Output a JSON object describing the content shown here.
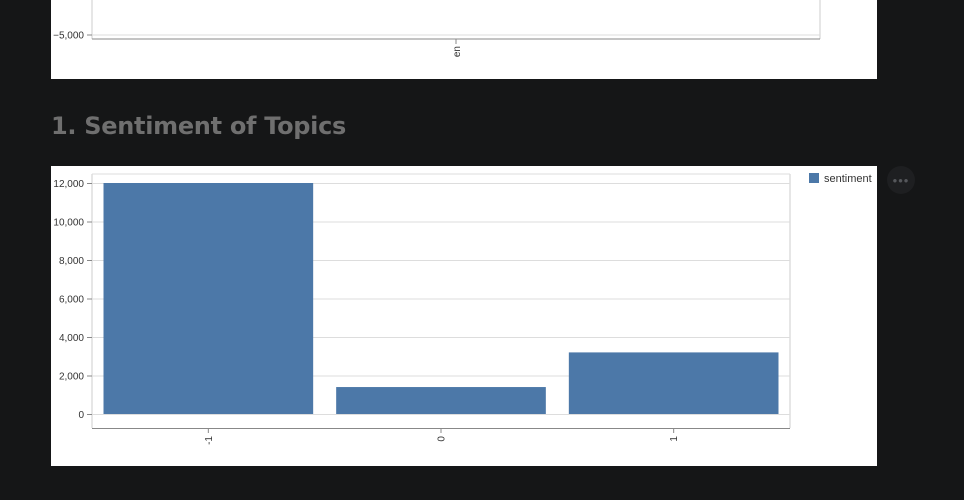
{
  "top_chart": {
    "y_tick_label": "−5,000",
    "x_tick_label": "en"
  },
  "section": {
    "title": "1. Sentiment of Topics"
  },
  "menu_icon": "more-horizontal-icon",
  "chart_data": {
    "type": "bar",
    "categories": [
      "-1",
      "0",
      "1"
    ],
    "series": [
      {
        "name": "sentiment",
        "values": [
          12000,
          1400,
          3200
        ],
        "color": "#4c78a8"
      }
    ],
    "ylim": [
      0,
      12000
    ],
    "yticks": [
      0,
      2000,
      4000,
      6000,
      8000,
      10000,
      12000
    ],
    "ytick_labels": [
      "0",
      "2,000",
      "4,000",
      "6,000",
      "8,000",
      "10,000",
      "12,000"
    ],
    "xlabel": "",
    "ylabel": "",
    "grid": true,
    "legend": "top-right"
  }
}
